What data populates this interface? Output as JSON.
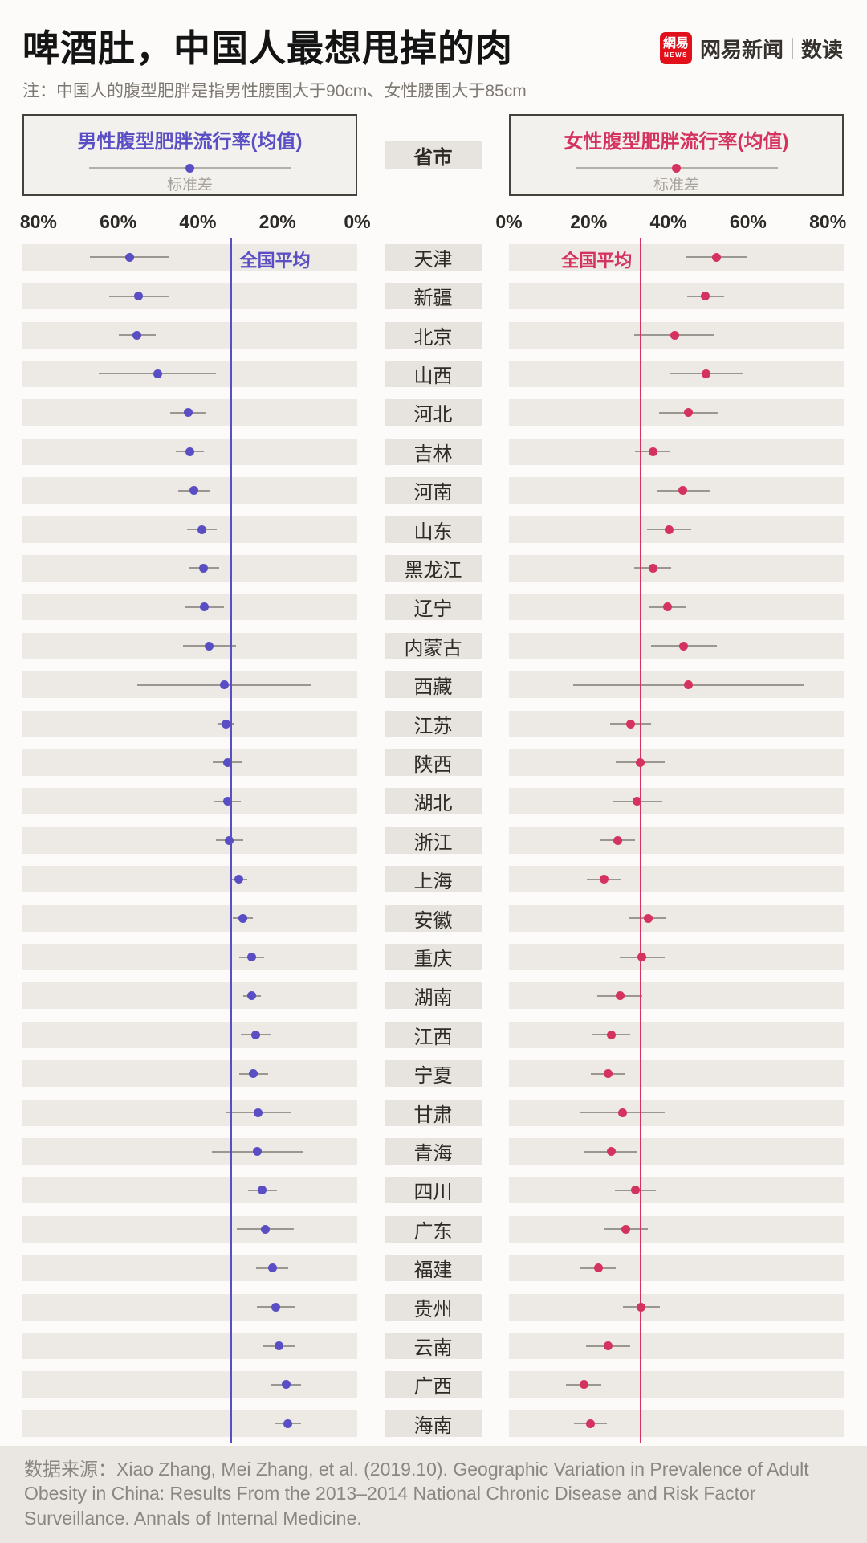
{
  "header": {
    "title": "啤酒肚，中国人最想甩掉的肉",
    "note": "注：中国人的腹型肥胖是指男性腰围大于90cm、女性腰围大于85cm",
    "brand": {
      "logo_main": "網易",
      "logo_sub": "NEWS",
      "name": "网易新闻",
      "section": "数读"
    }
  },
  "legend": {
    "male_em": "男性腹型",
    "female_em": "女性腹型",
    "title_rest": "肥胖流行率(均值)",
    "sd_label": "标准差",
    "center_label": "省市",
    "avg_label": "全国平均"
  },
  "colors": {
    "male": "#5a4ec4",
    "female": "#d5335f",
    "logo_red": "#e2101a",
    "stripe": "#edeae6",
    "pill": "#e7e3de",
    "sd_bar": "#9a9791"
  },
  "chart_data": {
    "type": "scatter",
    "variant": "paired dot plot with ±1 standard-deviation bars, shared province axis",
    "unit": "%",
    "provinces": [
      "天津",
      "新疆",
      "北京",
      "山西",
      "河北",
      "吉林",
      "河南",
      "山东",
      "黑龙江",
      "辽宁",
      "内蒙古",
      "西藏",
      "江苏",
      "陕西",
      "湖北",
      "浙江",
      "上海",
      "安徽",
      "重庆",
      "湖南",
      "江西",
      "宁夏",
      "甘肃",
      "青海",
      "四川",
      "广东",
      "福建",
      "贵州",
      "云南",
      "广西",
      "海南"
    ],
    "series": [
      {
        "name": "男性腹型肥胖流行率(均值)",
        "mean": [
          57.2,
          54.8,
          55.2,
          50.1,
          42.5,
          42.0,
          41.0,
          39.0,
          38.5,
          38.3,
          37.1,
          33.4,
          32.9,
          32.6,
          32.6,
          32.1,
          29.7,
          28.7,
          26.5,
          26.4,
          25.5,
          26.0,
          24.8,
          25.0,
          23.8,
          23.1,
          21.3,
          20.4,
          19.6,
          17.9,
          17.4
        ],
        "sd": [
          9.8,
          7.4,
          4.7,
          14.7,
          4.4,
          3.5,
          3.9,
          3.7,
          3.9,
          4.8,
          6.6,
          21.7,
          2.0,
          3.6,
          3.3,
          3.4,
          2.1,
          2.6,
          3.1,
          2.3,
          3.7,
          3.7,
          8.2,
          11.4,
          3.6,
          7.1,
          4.0,
          4.7,
          3.9,
          3.9,
          3.3
        ],
        "national_avg": 31.9
      },
      {
        "name": "女性腹型肥胖流行率(均值)",
        "mean": [
          52.0,
          49.3,
          41.5,
          49.5,
          45.1,
          36.1,
          43.7,
          40.2,
          36.1,
          39.8,
          43.9,
          45.1,
          30.5,
          32.9,
          32.2,
          27.3,
          23.9,
          34.9,
          33.4,
          27.8,
          25.6,
          24.9,
          28.5,
          25.6,
          31.7,
          29.3,
          22.4,
          33.2,
          24.9,
          18.8,
          20.5
        ],
        "sd": [
          7.7,
          4.6,
          10.0,
          9.1,
          7.4,
          4.4,
          6.7,
          5.6,
          4.6,
          4.8,
          8.2,
          29.0,
          5.2,
          6.2,
          6.2,
          4.4,
          4.3,
          4.6,
          5.6,
          5.7,
          4.8,
          4.4,
          10.6,
          6.7,
          5.2,
          5.5,
          4.4,
          4.6,
          5.6,
          4.4,
          4.1
        ],
        "national_avg": 32.9
      }
    ],
    "x_axis": {
      "min": 0,
      "max": 80,
      "male_tick_labels": [
        "80%",
        "60%",
        "40%",
        "20%",
        "0%"
      ],
      "female_tick_labels": [
        "0%",
        "20%",
        "40%",
        "60%",
        "80%"
      ],
      "male_direction": "reversed (0% at right)",
      "female_direction": "normal (0% at left)"
    }
  },
  "footer": {
    "source": "数据来源：Xiao Zhang, Mei Zhang, et al. (2019.10). Geographic Variation in Prevalence of Adult Obesity in China: Results From the 2013–2014 National Chronic Disease and Risk Factor Surveillance. Annals of Internal Medicine."
  }
}
